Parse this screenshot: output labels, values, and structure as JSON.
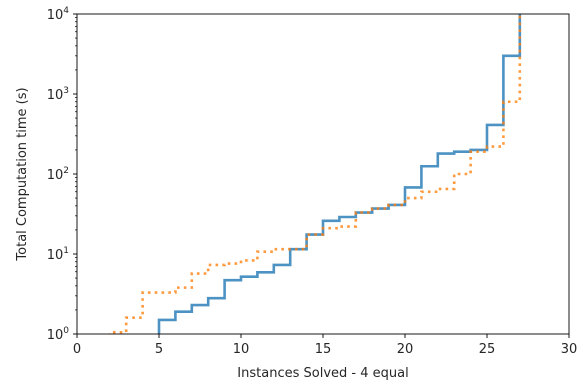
{
  "chart_data": {
    "type": "line",
    "drawstyle": "steps-post",
    "title": "",
    "xlabel": "Instances Solved - 4 equal",
    "ylabel": "Total Computation time (s)",
    "xlim": [
      0,
      30
    ],
    "ylim": [
      1,
      10000
    ],
    "yscale": "log",
    "grid": false,
    "x_ticks": [
      0,
      5,
      10,
      15,
      20,
      25,
      30
    ],
    "y_ticks": [
      {
        "value": 1,
        "base": "10",
        "exp": "0"
      },
      {
        "value": 10,
        "base": "10",
        "exp": "1"
      },
      {
        "value": 100,
        "base": "10",
        "exp": "2"
      },
      {
        "value": 1000,
        "base": "10",
        "exp": "3"
      },
      {
        "value": 10000,
        "base": "10",
        "exp": "4"
      }
    ],
    "series": [
      {
        "color": "#1f77b4",
        "linestyle": "solid",
        "opacity": 0.8,
        "x": [
          5,
          6,
          7,
          8,
          9,
          10,
          11,
          12,
          13,
          14,
          15,
          16,
          17,
          18,
          19,
          20,
          21,
          22,
          23,
          24,
          25,
          26,
          27
        ],
        "y": [
          1.5,
          1.9,
          2.3,
          2.8,
          4.7,
          5.2,
          5.9,
          7.3,
          11.5,
          17.5,
          26,
          29,
          33,
          37,
          41,
          68,
          125,
          180,
          190,
          200,
          410,
          3000,
          10000
        ]
      },
      {
        "color": "#ff7f0e",
        "linestyle": "dotted",
        "opacity": 0.8,
        "x": [
          2,
          3,
          4,
          5,
          6,
          7,
          8,
          9,
          10,
          11,
          12,
          13,
          14,
          15,
          16,
          17,
          18,
          19,
          20,
          21,
          22,
          23,
          24,
          25,
          26,
          27
        ],
        "y": [
          1.05,
          1.6,
          3.3,
          3.3,
          3.8,
          5.7,
          7.3,
          7.6,
          8.3,
          10.7,
          11.5,
          11.5,
          17.5,
          21,
          22,
          33,
          37,
          41,
          50,
          60,
          65,
          100,
          190,
          220,
          800,
          10000
        ]
      }
    ]
  }
}
